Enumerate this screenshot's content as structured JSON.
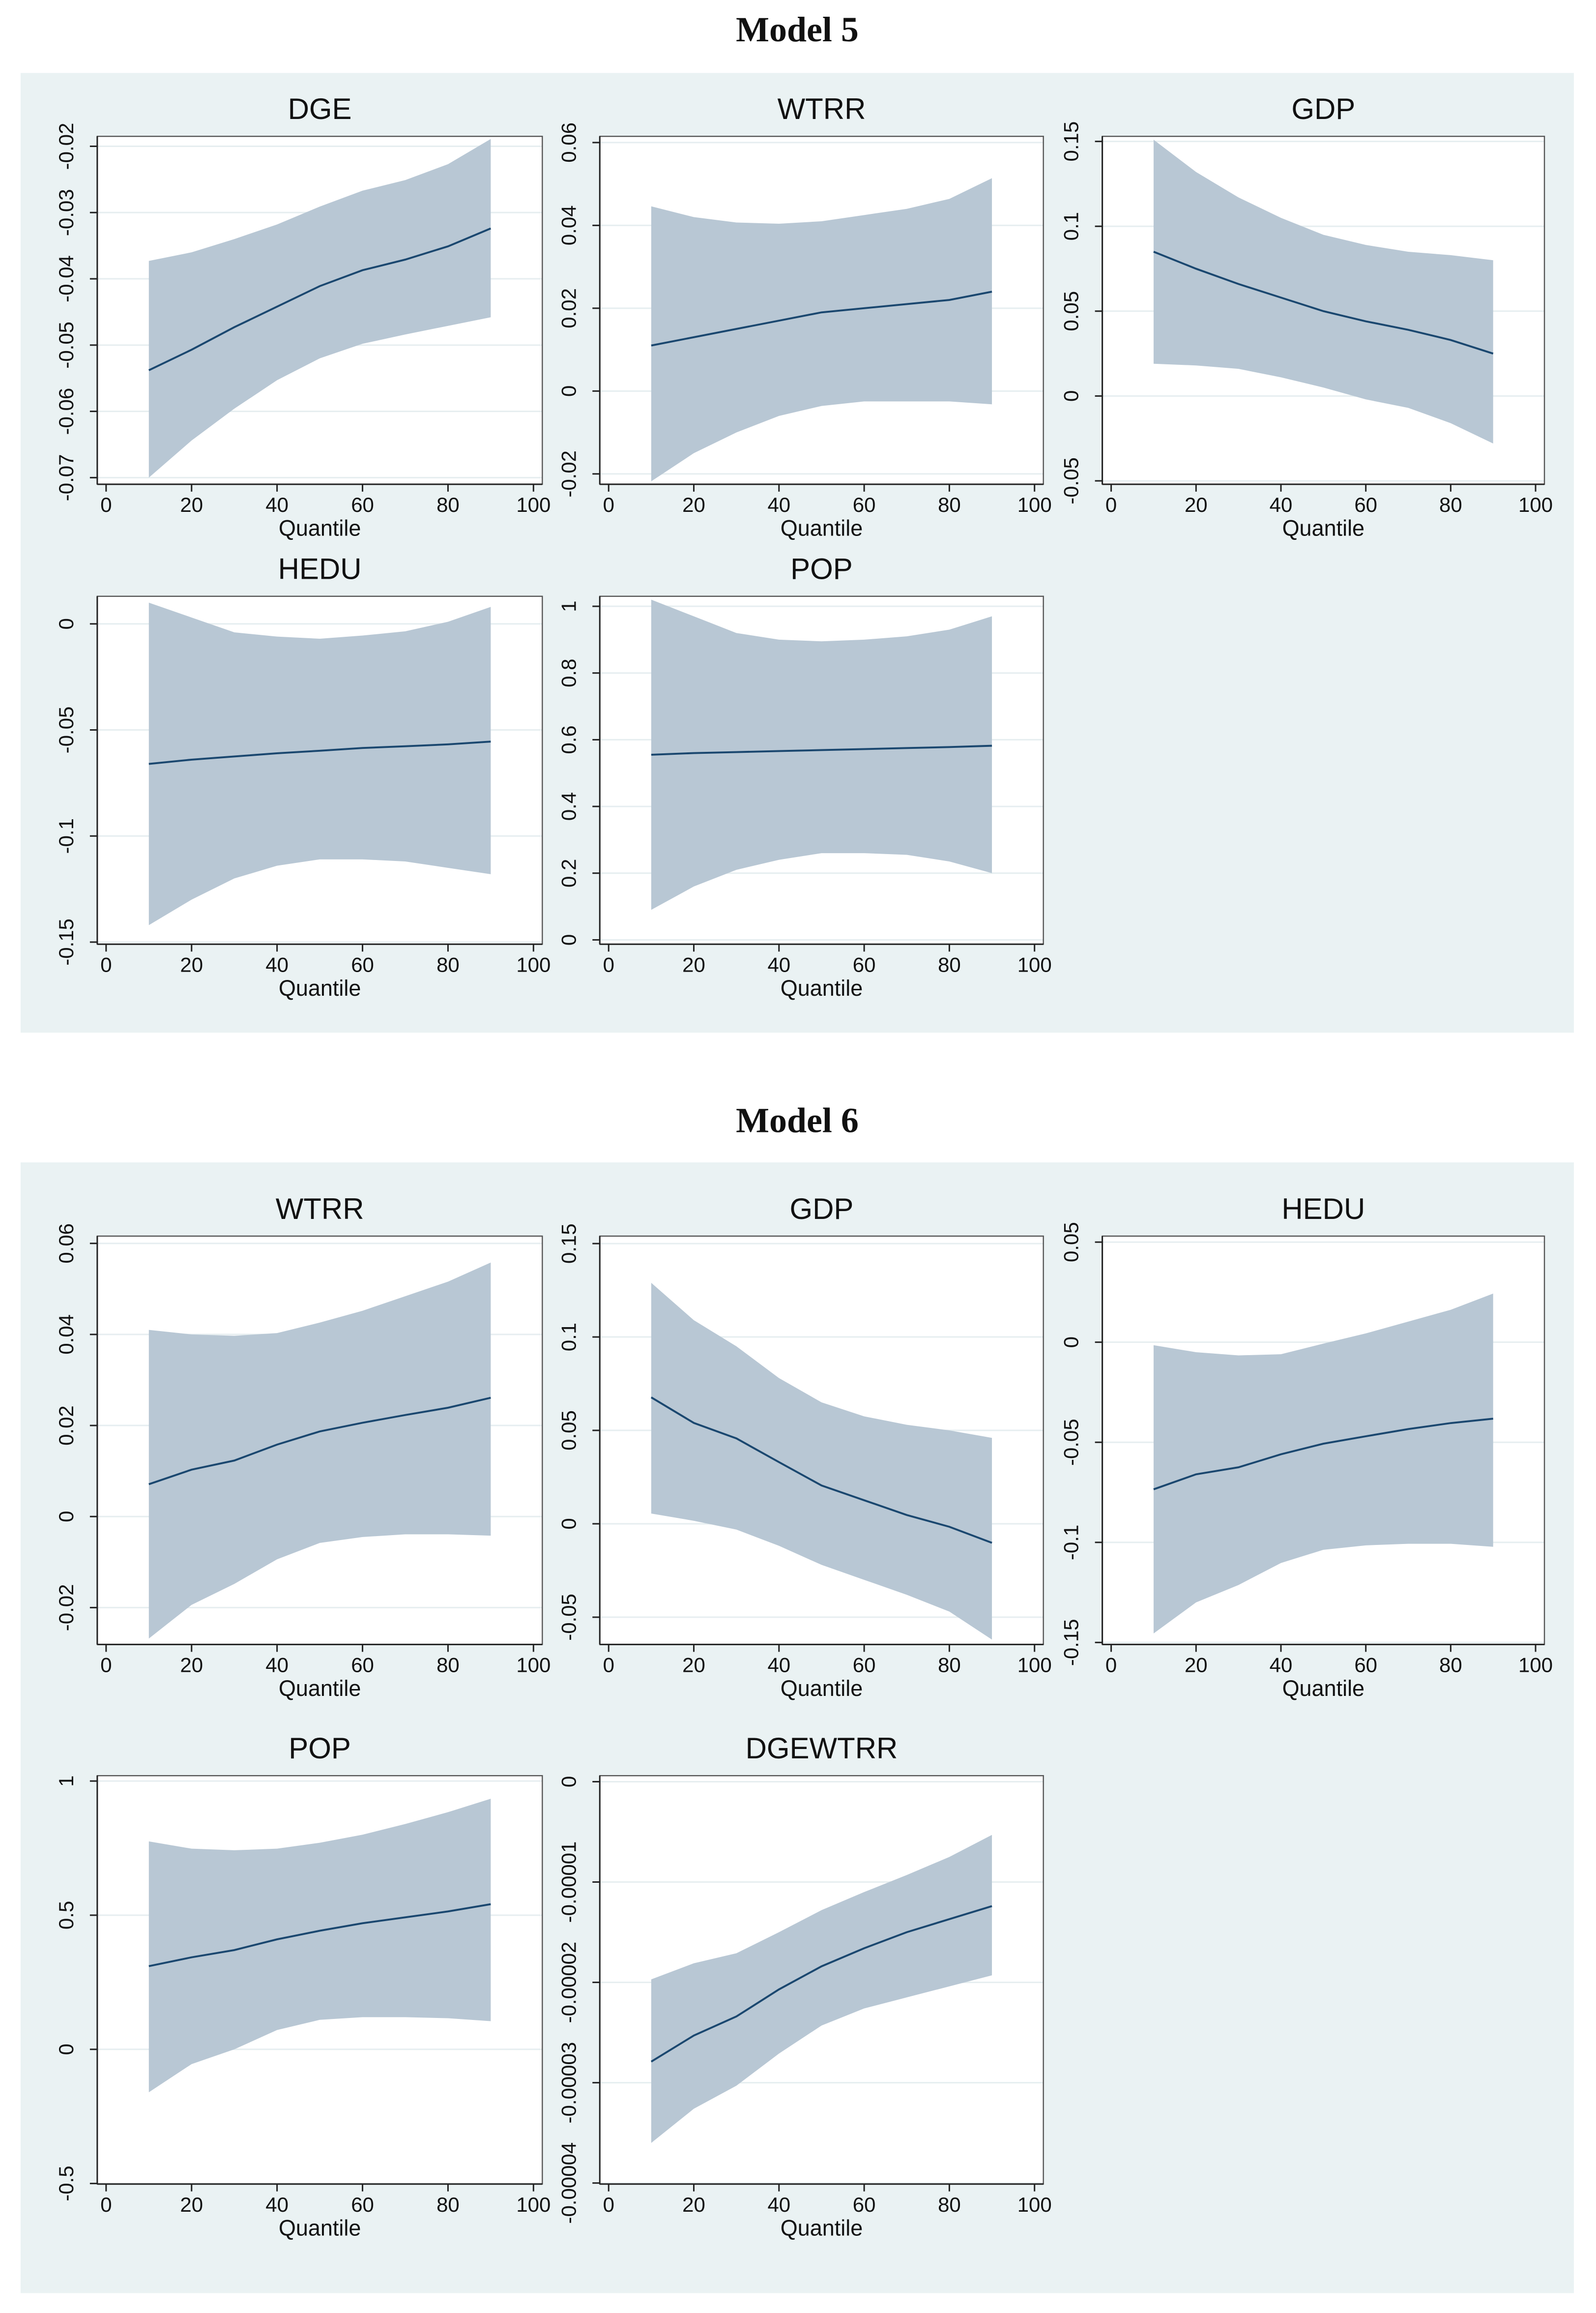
{
  "panels": [
    {
      "title": "Model 5",
      "chart_data": [
        {
          "type": "line",
          "title": "DGE",
          "xlabel": "Quantile",
          "x": [
            10,
            20,
            30,
            40,
            50,
            60,
            70,
            80,
            90
          ],
          "xlim": [
            0,
            100
          ],
          "xticks": [
            0,
            20,
            40,
            60,
            80,
            100
          ],
          "ylim": [
            -0.071,
            -0.0185
          ],
          "yticks": [
            -0.07,
            -0.06,
            -0.05,
            -0.04,
            -0.03,
            -0.02
          ],
          "grid": true,
          "series": [
            {
              "color": "#1a476f",
              "band_color": "#b8c7d4",
              "values": [
                -0.0538,
                -0.0507,
                -0.0473,
                -0.0442,
                -0.0411,
                -0.0387,
                -0.0371,
                -0.0351,
                -0.0324
              ],
              "lower": [
                -0.07,
                -0.0644,
                -0.0596,
                -0.0553,
                -0.052,
                -0.0498,
                -0.0484,
                -0.0471,
                -0.0458
              ],
              "upper": [
                -0.0373,
                -0.036,
                -0.034,
                -0.0318,
                -0.0291,
                -0.0267,
                -0.0251,
                -0.0227,
                -0.0189
              ]
            }
          ]
        },
        {
          "type": "line",
          "title": "WTRR",
          "xlabel": "Quantile",
          "x": [
            10,
            20,
            30,
            40,
            50,
            60,
            70,
            80,
            90
          ],
          "xlim": [
            0,
            100
          ],
          "xticks": [
            0,
            20,
            40,
            60,
            80,
            100
          ],
          "ylim": [
            -0.0225,
            0.0615
          ],
          "yticks": [
            -0.02,
            0,
            0.02,
            0.04,
            0.06
          ],
          "grid": true,
          "series": [
            {
              "color": "#1a476f",
              "band_color": "#b8c7d4",
              "values": [
                0.011,
                0.013,
                0.015,
                0.017,
                0.019,
                0.02,
                0.021,
                0.022,
                0.024
              ],
              "lower": [
                -0.0218,
                -0.015,
                -0.01,
                -0.006,
                -0.0036,
                -0.0025,
                -0.0025,
                -0.0025,
                -0.0032
              ],
              "upper": [
                0.0446,
                0.042,
                0.0407,
                0.0404,
                0.041,
                0.0425,
                0.044,
                0.0464,
                0.0514
              ]
            }
          ]
        },
        {
          "type": "line",
          "title": "GDP",
          "xlabel": "Quantile",
          "x": [
            10,
            20,
            30,
            40,
            50,
            60,
            70,
            80,
            90
          ],
          "xlim": [
            0,
            100
          ],
          "xticks": [
            0,
            20,
            40,
            60,
            80,
            100
          ],
          "ylim": [
            -0.052,
            0.153
          ],
          "yticks": [
            -0.05,
            0,
            0.05,
            0.1,
            0.15
          ],
          "grid": true,
          "series": [
            {
              "color": "#1a476f",
              "band_color": "#b8c7d4",
              "values": [
                0.085,
                0.075,
                0.066,
                0.058,
                0.05,
                0.044,
                0.039,
                0.033,
                0.025
              ],
              "lower": [
                0.019,
                0.018,
                0.016,
                0.011,
                0.005,
                -0.002,
                -0.007,
                -0.016,
                -0.028
              ],
              "upper": [
                0.151,
                0.132,
                0.117,
                0.105,
                0.095,
                0.089,
                0.085,
                0.083,
                0.08
              ]
            }
          ]
        },
        {
          "type": "line",
          "title": "HEDU",
          "xlabel": "Quantile",
          "x": [
            10,
            20,
            30,
            40,
            50,
            60,
            70,
            80,
            90
          ],
          "xlim": [
            0,
            100
          ],
          "xticks": [
            0,
            20,
            40,
            60,
            80,
            100
          ],
          "ylim": [
            -0.151,
            0.013
          ],
          "yticks": [
            -0.15,
            -0.1,
            -0.05,
            0
          ],
          "grid": true,
          "series": [
            {
              "color": "#1a476f",
              "band_color": "#b8c7d4",
              "values": [
                -0.066,
                -0.064,
                -0.0625,
                -0.061,
                -0.0598,
                -0.0585,
                -0.0577,
                -0.0568,
                -0.0555
              ],
              "lower": [
                -0.142,
                -0.13,
                -0.12,
                -0.114,
                -0.111,
                -0.111,
                -0.112,
                -0.115,
                -0.118
              ],
              "upper": [
                0.01,
                0.003,
                -0.004,
                -0.006,
                -0.007,
                -0.0055,
                -0.0035,
                0.001,
                0.008
              ]
            }
          ]
        },
        {
          "type": "line",
          "title": "POP",
          "xlabel": "Quantile",
          "x": [
            10,
            20,
            30,
            40,
            50,
            60,
            70,
            80,
            90
          ],
          "xlim": [
            0,
            100
          ],
          "xticks": [
            0,
            20,
            40,
            60,
            80,
            100
          ],
          "ylim": [
            -0.013,
            1.03
          ],
          "yticks": [
            0,
            0.2,
            0.4,
            0.6,
            0.8,
            1
          ],
          "grid": true,
          "series": [
            {
              "color": "#1a476f",
              "band_color": "#b8c7d4",
              "values": [
                0.555,
                0.56,
                0.563,
                0.566,
                0.569,
                0.572,
                0.575,
                0.578,
                0.582
              ],
              "lower": [
                0.09,
                0.16,
                0.21,
                0.24,
                0.26,
                0.26,
                0.255,
                0.235,
                0.2
              ],
              "upper": [
                1.02,
                0.97,
                0.92,
                0.9,
                0.895,
                0.9,
                0.91,
                0.93,
                0.97
              ]
            }
          ]
        }
      ]
    },
    {
      "title": "Model 6",
      "chart_data": [
        {
          "type": "line",
          "title": "WTRR",
          "xlabel": "Quantile",
          "x": [
            10,
            20,
            30,
            40,
            50,
            60,
            70,
            80,
            90
          ],
          "xlim": [
            0,
            100
          ],
          "xticks": [
            0,
            20,
            40,
            60,
            80,
            100
          ],
          "ylim": [
            -0.0281,
            0.0616
          ],
          "yticks": [
            -0.02,
            0,
            0.02,
            0.04,
            0.06
          ],
          "grid": true,
          "series": [
            {
              "color": "#1a476f",
              "band_color": "#b8c7d4",
              "values": [
                0.0071,
                0.0103,
                0.0123,
                0.0158,
                0.0187,
                0.0206,
                0.0223,
                0.0239,
                0.0261
              ],
              "lower": [
                -0.0268,
                -0.0194,
                -0.0148,
                -0.0094,
                -0.0058,
                -0.0045,
                -0.0039,
                -0.0039,
                -0.0042
              ],
              "upper": [
                0.041,
                0.04,
                0.0397,
                0.0403,
                0.0426,
                0.0452,
                0.0484,
                0.0516,
                0.0558
              ]
            }
          ]
        },
        {
          "type": "line",
          "title": "GDP",
          "xlabel": "Quantile",
          "x": [
            10,
            20,
            30,
            40,
            50,
            60,
            70,
            80,
            90
          ],
          "xlim": [
            0,
            100
          ],
          "xticks": [
            0,
            20,
            40,
            60,
            80,
            100
          ],
          "ylim": [
            -0.0646,
            0.154
          ],
          "yticks": [
            -0.05,
            0,
            0.05,
            0.1,
            0.15
          ],
          "grid": true,
          "series": [
            {
              "color": "#1a476f",
              "band_color": "#b8c7d4",
              "values": [
                0.0677,
                0.054,
                0.0457,
                0.033,
                0.0205,
                0.0126,
                0.0047,
                -0.0016,
                -0.0102
              ],
              "lower": [
                0.0055,
                0.0016,
                -0.0031,
                -0.0118,
                -0.022,
                -0.03,
                -0.038,
                -0.047,
                -0.062
              ],
              "upper": [
                0.129,
                0.109,
                0.095,
                0.078,
                0.065,
                0.0575,
                0.053,
                0.05,
                0.046
              ]
            }
          ]
        },
        {
          "type": "line",
          "title": "HEDU",
          "xlabel": "Quantile",
          "x": [
            10,
            20,
            30,
            40,
            50,
            60,
            70,
            80,
            90
          ],
          "xlim": [
            0,
            100
          ],
          "xticks": [
            0,
            20,
            40,
            60,
            80,
            100
          ],
          "ylim": [
            -0.151,
            0.053
          ],
          "yticks": [
            -0.15,
            -0.1,
            -0.05,
            0,
            0.05
          ],
          "grid": true,
          "series": [
            {
              "color": "#1a476f",
              "band_color": "#b8c7d4",
              "values": [
                -0.0735,
                -0.066,
                -0.0625,
                -0.056,
                -0.0507,
                -0.047,
                -0.0434,
                -0.0404,
                -0.0382
              ],
              "lower": [
                -0.1455,
                -0.13,
                -0.1213,
                -0.1103,
                -0.1037,
                -0.1015,
                -0.1007,
                -0.1007,
                -0.1022
              ],
              "upper": [
                -0.0015,
                -0.005,
                -0.0066,
                -0.006,
                -0.0007,
                0.0044,
                0.0103,
                0.0162,
                0.0243
              ]
            }
          ]
        },
        {
          "type": "line",
          "title": "POP",
          "xlabel": "Quantile",
          "x": [
            10,
            20,
            30,
            40,
            50,
            60,
            70,
            80,
            90
          ],
          "xlim": [
            0,
            100
          ],
          "xticks": [
            0,
            20,
            40,
            60,
            80,
            100
          ],
          "ylim": [
            -0.502,
            1.02
          ],
          "yticks": [
            -0.5,
            0,
            0.5,
            1
          ],
          "grid": true,
          "series": [
            {
              "color": "#1a476f",
              "band_color": "#b8c7d4",
              "values": [
                0.31,
                0.343,
                0.37,
                0.41,
                0.442,
                0.47,
                0.492,
                0.514,
                0.541
              ],
              "lower": [
                -0.16,
                -0.055,
                0,
                0.072,
                0.11,
                0.12,
                0.12,
                0.116,
                0.105
              ],
              "upper": [
                0.775,
                0.748,
                0.742,
                0.748,
                0.77,
                0.8,
                0.84,
                0.884,
                0.934
              ]
            }
          ]
        },
        {
          "type": "line",
          "title": "DGEWTRR",
          "xlabel": "Quantile",
          "x": [
            10,
            20,
            30,
            40,
            50,
            60,
            70,
            80,
            90
          ],
          "xlim": [
            0,
            100
          ],
          "xticks": [
            0,
            20,
            40,
            60,
            80,
            100
          ],
          "ylim": [
            -4.01e-05,
            6e-07
          ],
          "yticks": [
            -4e-05,
            -3e-05,
            -2e-05,
            -1e-05,
            0
          ],
          "grid": true,
          "series": [
            {
              "color": "#1a476f",
              "band_color": "#b8c7d4",
              "values": [
                -2.79e-05,
                -2.53e-05,
                -2.34e-05,
                -2.07e-05,
                -1.84e-05,
                -1.66e-05,
                -1.5e-05,
                -1.37e-05,
                -1.24e-05
              ],
              "lower": [
                -3.6e-05,
                -3.26e-05,
                -3.03e-05,
                -2.71e-05,
                -2.43e-05,
                -2.26e-05,
                -2.15e-05,
                -2.04e-05,
                -1.93e-05
              ],
              "upper": [
                -1.97e-05,
                -1.81e-05,
                -1.71e-05,
                -1.5e-05,
                -1.28e-05,
                -1.1e-05,
                -9.3e-06,
                -7.5e-06,
                -5.3e-06
              ]
            }
          ]
        }
      ]
    }
  ]
}
